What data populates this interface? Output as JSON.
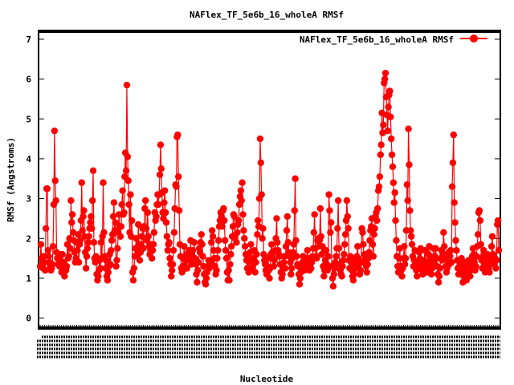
{
  "chart_data": {
    "type": "line",
    "title": "NAFlex_TF_5e6b_16_wholeA RMSf",
    "xlabel": "Nucleotide",
    "ylabel": "RMSf (Angstroms)",
    "ylim": [
      -0.25,
      7.2
    ],
    "yticks": [
      "0",
      "1",
      "2",
      "3",
      "4",
      "5",
      "6",
      "7"
    ],
    "legend_position": "top-right",
    "grid": false,
    "series": [
      {
        "name": "NAFlex_TF_5e6b_16_wholeA RMSf",
        "color": "#ff0000",
        "values": [
          1.3,
          1.85,
          1.5,
          1.35,
          1.25,
          1.55,
          1.4,
          1.2,
          2.25,
          3.25,
          3.25,
          1.7,
          1.55,
          1.4,
          1.3,
          1.2,
          1.25,
          1.35,
          1.8,
          2.85,
          4.7,
          3.45,
          2.95,
          1.65,
          1.5,
          1.35,
          1.5,
          1.3,
          1.4,
          1.6,
          1.15,
          1.6,
          1.4,
          1.2,
          1.05,
          1.3,
          1.2,
          1.3,
          1.85,
          1.5,
          1.55,
          2.0,
          1.75,
          2.95,
          2.4,
          2.6,
          2.15,
          1.95,
          1.65,
          1.4,
          1.5,
          1.9,
          1.7,
          2.1,
          1.4,
          1.85,
          1.95,
          2.45,
          3.4,
          2.2,
          2.55,
          2.7,
          2.05,
          1.65,
          1.25,
          1.55,
          1.75,
          1.9,
          2.05,
          2.25,
          2.4,
          2.55,
          2.25,
          2.95,
          3.7,
          1.9,
          1.5,
          1.4,
          1.55,
          1.1,
          0.95,
          1.05,
          1.2,
          1.45,
          1.25,
          1.9,
          1.5,
          2.05,
          3.4,
          2.15,
          1.55,
          1.25,
          1.45,
          1.05,
          0.95,
          1.15,
          1.3,
          1.6,
          1.35,
          1.7,
          1.95,
          2.1,
          2.55,
          2.9,
          2.2,
          2.4,
          1.3,
          1.45,
          1.75,
          2.15,
          2.6,
          2.3,
          2.05,
          2.3,
          2.85,
          3.2,
          2.6,
          2.65,
          3.55,
          4.15,
          3.7,
          5.85,
          4.05,
          3.45,
          2.85,
          2.15,
          3.1,
          2.05,
          2.45,
          1.15,
          0.95,
          1.25,
          1.55,
          1.75,
          2.0,
          1.75,
          1.6,
          2.35,
          1.85,
          1.45,
          1.65,
          1.85,
          2.05,
          2.25,
          1.75,
          2.3,
          2.75,
          2.95,
          2.25,
          1.95,
          2.65,
          2.05,
          1.8,
          1.6,
          1.7,
          1.85,
          1.5,
          1.7,
          1.85,
          2.15,
          2.65,
          2.45,
          2.55,
          2.85,
          3.1,
          2.85,
          3.1,
          3.6,
          4.35,
          3.75,
          3.15,
          2.65,
          2.5,
          2.9,
          3.2,
          2.65,
          2.4,
          2.05,
          1.7,
          1.85,
          1.9,
          1.5,
          1.35,
          1.05,
          1.2,
          1.35,
          1.7,
          2.15,
          2.75,
          3.35,
          3.3,
          4.55,
          4.6,
          3.55,
          2.7,
          1.85,
          1.55,
          1.25,
          1.15,
          1.3,
          1.5,
          1.8,
          1.45,
          1.25,
          1.5,
          1.25,
          1.6,
          1.65,
          1.7,
          1.45,
          1.95,
          1.35,
          1.55,
          1.7,
          1.45,
          1.9,
          1.5,
          1.35,
          1.1,
          0.9,
          1.2,
          1.4,
          1.75,
          1.65,
          1.9,
          2.1,
          1.85,
          1.55,
          1.3,
          1.1,
          0.9,
          0.85,
          1.0,
          1.15,
          1.3,
          1.45,
          1.25,
          1.35,
          1.4,
          1.9,
          2.2,
          2.05,
          1.7,
          1.5,
          1.3,
          1.1,
          1.2,
          1.5,
          1.7,
          1.95,
          2.3,
          2.45,
          2.65,
          2.55,
          2.3,
          2.7,
          2.75,
          2.45,
          1.95,
          1.7,
          1.5,
          1.15,
          0.95,
          1.2,
          0.95,
          1.35,
          1.6,
          1.8,
          2.05,
          2.3,
          2.6,
          2.55,
          2.0,
          2.1,
          1.9,
          2.15,
          2.35,
          2.45,
          2.85,
          3.05,
          3.2,
          2.95,
          3.4,
          2.6,
          2.2,
          2.0,
          1.8,
          1.6,
          1.45,
          1.25,
          1.5,
          1.15,
          1.45,
          1.65,
          1.85,
          1.45,
          1.25,
          1.35,
          1.5,
          1.7,
          1.15,
          1.4,
          1.6,
          2.1,
          2.45,
          2.3,
          3.0,
          4.5,
          3.9,
          3.1,
          2.0,
          2.25,
          1.6,
          1.45,
          1.35,
          1.2,
          1.1,
          1.3,
          1.5,
          1.2,
          1.0,
          1.25,
          1.6,
          1.85,
          1.65,
          1.5,
          1.3,
          1.45,
          1.7,
          2.0,
          2.5,
          1.9,
          1.7,
          1.6,
          1.55,
          1.35,
          1.15,
          1.0,
          1.1,
          1.25,
          1.4,
          1.55,
          1.25,
          1.8,
          2.2,
          2.55,
          1.9,
          1.65,
          1.55,
          1.4,
          1.1,
          1.25,
          1.5,
          1.65,
          1.85,
          2.7,
          3.5,
          1.95,
          1.55,
          1.35,
          1.3,
          1.1,
          0.85,
          1.0,
          1.15,
          1.25,
          1.4,
          1.55,
          1.35,
          1.2,
          1.3,
          1.35,
          1.45,
          1.7,
          1.5,
          1.3,
          1.2,
          1.45,
          1.25,
          1.4,
          1.55,
          1.75,
          2.15,
          2.6,
          1.75,
          1.55,
          1.5,
          1.95,
          2.0,
          1.8,
          1.95,
          2.75,
          2.05,
          1.6,
          1.8,
          1.3,
          1.05,
          1.2,
          1.45,
          1.7,
          1.35,
          1.2,
          1.55,
          3.1,
          2.7,
          2.15,
          2.4,
          1.3,
          1.0,
          0.8,
          1.1,
          1.25,
          1.4,
          1.55,
          1.75,
          2.25,
          2.95,
          1.75,
          1.35,
          1.2,
          1.1,
          1.05,
          1.3,
          1.45,
          1.6,
          1.85,
          2.1,
          2.45,
          2.95,
          2.55,
          2.25,
          1.45,
          1.25,
          1.55,
          1.4,
          1.2,
          1.05,
          0.95,
          1.1,
          1.3,
          1.45,
          1.25,
          1.55,
          1.8,
          1.5,
          1.35,
          1.1,
          1.2,
          1.4,
          2.25,
          2.15,
          1.85,
          1.4,
          1.6,
          1.5,
          1.3,
          1.15,
          1.35,
          1.5,
          1.65,
          1.95,
          2.2,
          2.3,
          2.5,
          1.85,
          1.55,
          2.1,
          2.25,
          2.55,
          2.65,
          2.45,
          2.75,
          3.2,
          3.3,
          3.55,
          4.1,
          4.35,
          5.15,
          4.65,
          4.85,
          5.9,
          6.0,
          6.15,
          5.55,
          5.1,
          4.7,
          5.3,
          5.6,
          5.7,
          5.05,
          4.5,
          4.1,
          3.8,
          3.4,
          2.9,
          3.15,
          2.45,
          1.95,
          1.55,
          1.3,
          1.15,
          1.5,
          1.75,
          1.3,
          1.2,
          1.05,
          1.25,
          1.5,
          1.8,
          1.35,
          1.5,
          2.2,
          3.35,
          2.95,
          4.75,
          3.85,
          2.7,
          2.2,
          2.05,
          1.85,
          1.55,
          1.3,
          1.45,
          1.7,
          1.35,
          1.2,
          1.05,
          1.25,
          1.45,
          1.65,
          1.5,
          1.75,
          1.35,
          1.2,
          1.1,
          1.3,
          1.45,
          1.7,
          1.35,
          1.2,
          1.15,
          1.4,
          1.6,
          1.8,
          1.55,
          1.3,
          1.1,
          1.25,
          1.5,
          1.75,
          1.4,
          1.55,
          1.75,
          1.5,
          1.3,
          1.1,
          0.9,
          1.05,
          1.25,
          1.5,
          1.7,
          1.45,
          1.6,
          2.15,
          1.8,
          1.5,
          1.3,
          1.15,
          1.25,
          1.45,
          1.65,
          1.35,
          1.55,
          1.7,
          1.4,
          3.3,
          3.9,
          4.6,
          2.9,
          2.4,
          1.95,
          1.7,
          1.45,
          1.25,
          1.1,
          1.3,
          1.15,
          1.35,
          1.5,
          1.2,
          0.9,
          1.05,
          1.25,
          1.4,
          1.15,
          0.95,
          1.1,
          1.3,
          1.45,
          1.25,
          1.05,
          1.2,
          1.35,
          1.55,
          1.75,
          1.6,
          1.4,
          1.2,
          1.3,
          1.55,
          1.8,
          2.1,
          2.65,
          2.7,
          2.45,
          1.85,
          1.45,
          1.25,
          1.55,
          1.7,
          1.35,
          1.15,
          1.3,
          1.45,
          1.6,
          1.4,
          1.25,
          1.15,
          1.35,
          1.55,
          1.8,
          2.05,
          1.6,
          1.45,
          1.35,
          1.5,
          1.25,
          1.45,
          2.35,
          2.45,
          1.7
        ]
      }
    ]
  }
}
